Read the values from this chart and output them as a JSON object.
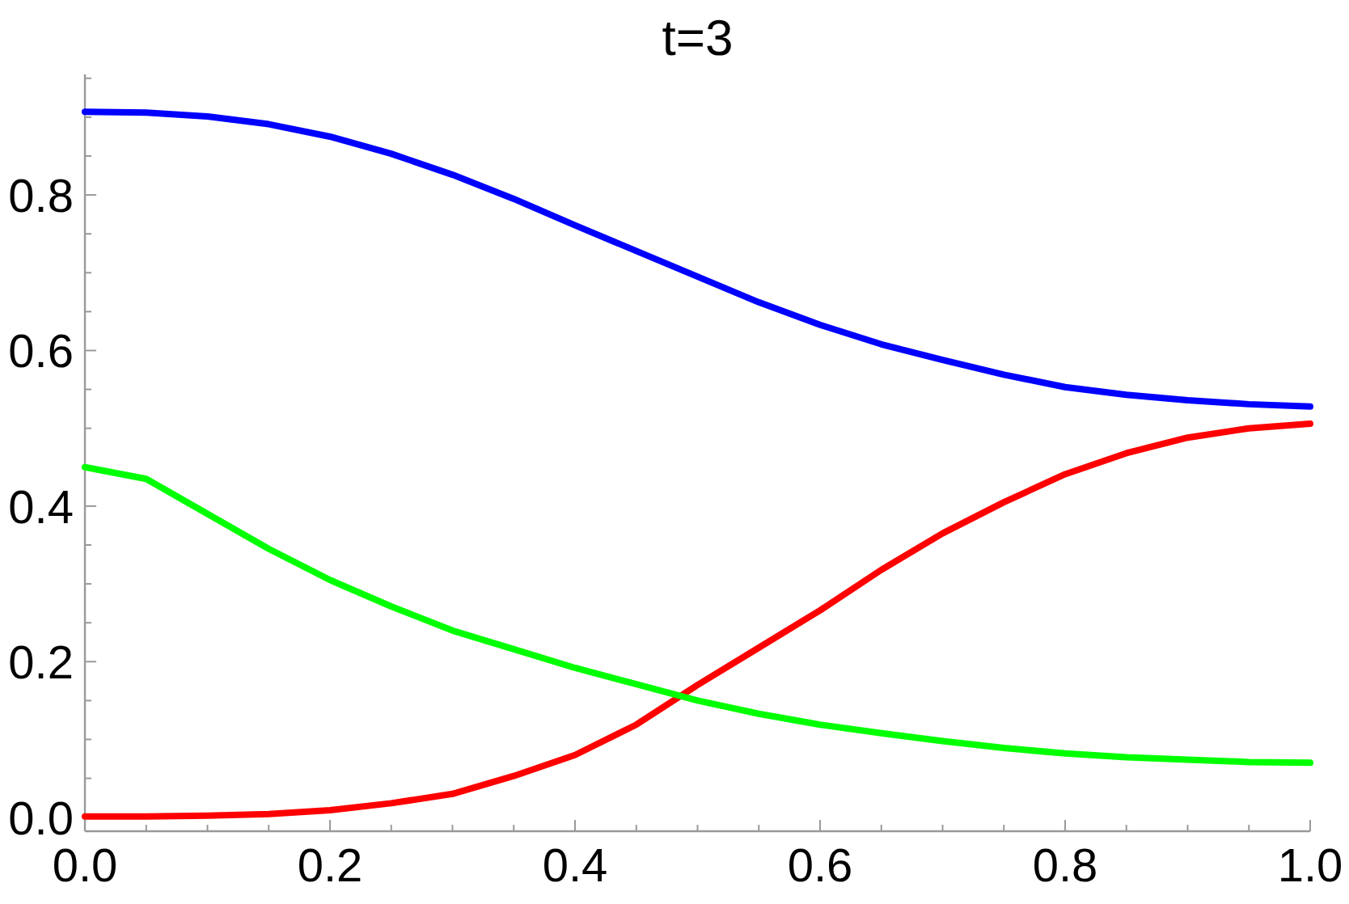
{
  "chart_data": {
    "type": "line",
    "title": "t=3",
    "x": [
      0,
      0.05,
      0.1,
      0.15,
      0.2,
      0.25,
      0.3,
      0.35,
      0.4,
      0.45,
      0.5,
      0.55,
      0.6,
      0.65,
      0.7,
      0.75,
      0.8,
      0.85,
      0.9,
      0.95,
      1.0
    ],
    "series": [
      {
        "color": "#0000ff",
        "values": [
          0.907,
          0.906,
          0.901,
          0.891,
          0.875,
          0.853,
          0.826,
          0.795,
          0.761,
          0.728,
          0.695,
          0.662,
          0.633,
          0.608,
          0.588,
          0.569,
          0.553,
          0.543,
          0.536,
          0.531,
          0.528
        ]
      },
      {
        "color": "#ff0000",
        "values": [
          0.001,
          0.001,
          0.002,
          0.004,
          0.009,
          0.018,
          0.03,
          0.053,
          0.08,
          0.119,
          0.17,
          0.218,
          0.266,
          0.318,
          0.365,
          0.405,
          0.441,
          0.468,
          0.488,
          0.5,
          0.506
        ]
      },
      {
        "color": "#00ff00",
        "values": [
          0.45,
          0.435,
          0.39,
          0.345,
          0.305,
          0.271,
          0.24,
          0.216,
          0.192,
          0.171,
          0.15,
          0.133,
          0.119,
          0.108,
          0.098,
          0.089,
          0.082,
          0.077,
          0.074,
          0.071,
          0.07
        ]
      }
    ],
    "xlim": [
      0,
      1
    ],
    "ylim": [
      -0.018,
      0.955
    ],
    "xticks": [
      {
        "value": 0,
        "label": "0.0"
      },
      {
        "value": 0.05,
        "label": null
      },
      0.2,
      {
        "value": 0.1,
        "label": null
      },
      {
        "value": 0.15,
        "label": null
      },
      {
        "value": 0.25,
        "label": null
      },
      {
        "value": 0.3,
        "label": null
      },
      {
        "value": 0.35,
        "label": null
      },
      0.4,
      {
        "value": 0.45,
        "label": null
      },
      {
        "value": 0.5,
        "label": null
      },
      {
        "value": 0.55,
        "label": null
      },
      0.6,
      {
        "value": 0.65,
        "label": null
      },
      {
        "value": 0.7,
        "label": null
      },
      {
        "value": 0.75,
        "label": null
      },
      0.8,
      {
        "value": 0.85,
        "label": null
      },
      {
        "value": 0.9,
        "label": null
      },
      {
        "value": 0.95,
        "label": null
      },
      {
        "value": 1.0,
        "label": "1.0"
      }
    ],
    "yticks": [
      {
        "value": 0,
        "label": "0.0"
      },
      {
        "value": 0.05,
        "label": null
      },
      {
        "value": 0.1,
        "label": null
      },
      {
        "value": 0.15,
        "label": null
      },
      0.2,
      {
        "value": 0.25,
        "label": null
      },
      {
        "value": 0.3,
        "label": null
      },
      {
        "value": 0.35,
        "label": null
      },
      0.4,
      {
        "value": 0.45,
        "label": null
      },
      {
        "value": 0.5,
        "label": null
      },
      {
        "value": 0.55,
        "label": null
      },
      0.6,
      {
        "value": 0.65,
        "label": null
      },
      {
        "value": 0.7,
        "label": null
      },
      {
        "value": 0.75,
        "label": null
      },
      0.8,
      {
        "value": 0.85,
        "label": null
      },
      {
        "value": 0.9,
        "label": null
      },
      {
        "value": 0.95,
        "label": null
      }
    ],
    "grid": false,
    "marker": "none",
    "line_style": "solid"
  }
}
